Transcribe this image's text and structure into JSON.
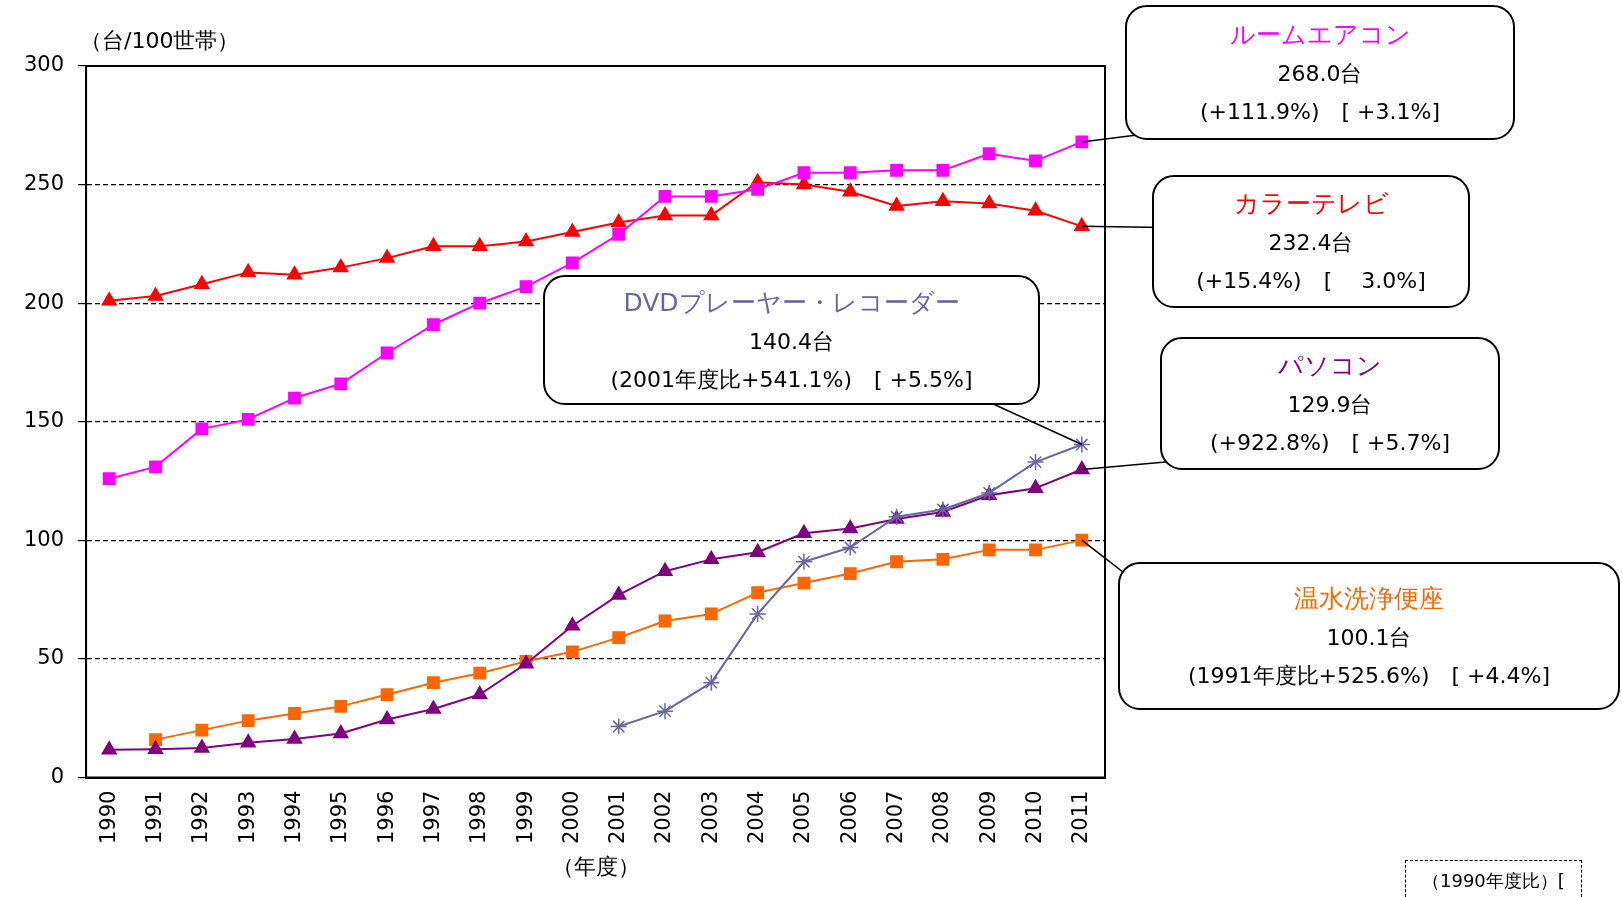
{
  "chart_data": {
    "type": "line",
    "ylabel": "（台/100世帯）",
    "xlabel": "（年度）",
    "categories": [
      "1990",
      "1991",
      "1992",
      "1993",
      "1994",
      "1995",
      "1996",
      "1997",
      "1998",
      "1999",
      "2000",
      "2001",
      "2002",
      "2003",
      "2004",
      "2005",
      "2006",
      "2007",
      "2008",
      "2009",
      "2010",
      "2011"
    ],
    "series": [
      {
        "name": "ルームエアコン",
        "color": "#ff00ff",
        "marker": "square",
        "values": [
          126,
          131,
          147,
          151,
          160,
          166,
          179,
          191,
          200,
          207,
          217,
          229,
          245,
          245,
          248,
          255,
          255,
          256,
          256,
          263,
          260,
          268.0
        ]
      },
      {
        "name": "カラーテレビ",
        "color": "#ff0000",
        "marker": "triangle",
        "values": [
          201,
          203,
          208,
          213,
          212,
          215,
          219,
          224,
          224,
          226,
          230,
          234,
          237,
          237,
          251,
          250,
          247,
          241,
          243,
          242,
          239,
          232.4
        ]
      },
      {
        "name": "DVDプレーヤー・レコーダー",
        "color": "#6666a0",
        "marker": "cross",
        "values": [
          null,
          null,
          null,
          null,
          null,
          null,
          null,
          null,
          null,
          null,
          null,
          21.5,
          28,
          40,
          69,
          91,
          97,
          110,
          113,
          120,
          133,
          140.4
        ]
      },
      {
        "name": "パソコン",
        "color": "#800080",
        "marker": "triangle",
        "values": [
          11.7,
          11.9,
          12.5,
          14.7,
          16.3,
          18.6,
          24.5,
          28.9,
          35,
          48,
          64,
          77,
          87,
          92,
          95,
          103,
          105,
          109,
          112,
          119,
          122,
          129.9
        ]
      },
      {
        "name": "温水洗浄便座",
        "color": "#ff6600",
        "marker": "square",
        "values": [
          null,
          16,
          20,
          24,
          27,
          30,
          35,
          40,
          44,
          49,
          53,
          59,
          66,
          69,
          78,
          82,
          86,
          91,
          92,
          96,
          96,
          100.1
        ]
      }
    ],
    "ylim": [
      0,
      300
    ],
    "yticks": [
      0,
      50,
      100,
      150,
      200,
      250,
      300
    ],
    "grid": "y",
    "legend": false,
    "annotations": [
      {
        "text": "268.0台\n(+111.9%)　[ +3.1%]",
        "x": "2011",
        "y": 268.0
      },
      {
        "text": "232.4台\n(+15.4%)　[　 3.0%]",
        "x": "2011",
        "y": 232.4
      },
      {
        "text": "140.4台\n(2001年度比+541.1%)　[ +5.5%]",
        "x": "2011",
        "y": 140.4
      },
      {
        "text": "129.9台\n(+922.8%)　[ +5.7%]",
        "x": "2011",
        "y": 129.9
      },
      {
        "text": "100.1台\n(1991年度比+525.6%)　[ +4.4%]",
        "x": "2011",
        "y": 100.1
      },
      "（1990年度比）["
    ]
  }
}
